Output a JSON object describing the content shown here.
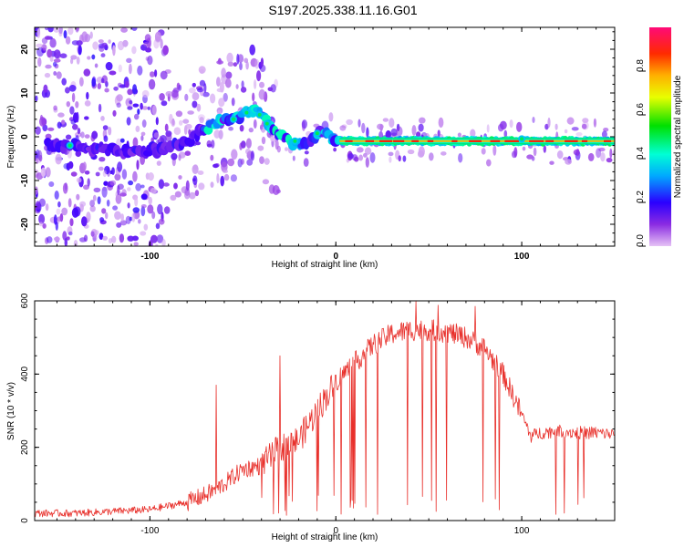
{
  "title": "S197.2025.338.11.16.G01",
  "chart_data": [
    {
      "type": "heatmap",
      "name": "spectrogram",
      "xlabel": "Height of straight line (km)",
      "ylabel": "Frequency (Hz)",
      "xlim": [
        -162,
        150
      ],
      "ylim": [
        -25,
        25
      ],
      "xticks": [
        -100,
        0,
        100
      ],
      "xtick_labels": [
        "-100",
        "0",
        "100"
      ],
      "yticks": [
        -20,
        -10,
        0,
        10,
        20
      ],
      "ytick_labels": [
        "-20",
        "-10",
        "0",
        "10",
        "20"
      ],
      "colorbar": {
        "label": "Normalized spectral amplitude",
        "range": [
          0,
          1
        ],
        "ticks": [
          0.0,
          0.2,
          0.4,
          0.6,
          0.8
        ],
        "tick_labels": [
          "0.0",
          "0.2",
          "0.4",
          "0.6",
          "0.8"
        ]
      },
      "ridge": {
        "x": [
          -150,
          -140,
          -130,
          -120,
          -110,
          -100,
          -90,
          -80,
          -70,
          -60,
          -50,
          -45,
          -40,
          -35,
          -30,
          -25,
          -20,
          -15,
          -10,
          -5,
          0,
          10,
          50,
          100,
          150
        ],
        "y": [
          -2,
          -2,
          -2.5,
          -3,
          -3.5,
          -3,
          -2.5,
          -1,
          2,
          4,
          5,
          6,
          5,
          2,
          0,
          -1,
          -1.5,
          -2,
          0.5,
          0.5,
          -1,
          -1,
          -1,
          -1,
          -1
        ]
      }
    },
    {
      "type": "line",
      "name": "snr",
      "xlabel": "Height of straight line (km)",
      "ylabel": "SNR (10 * v/v)",
      "xlim": [
        -162,
        150
      ],
      "ylim": [
        0,
        600
      ],
      "xticks": [
        -100,
        0,
        100
      ],
      "xtick_labels": [
        "-100",
        "0",
        "100"
      ],
      "yticks": [
        0,
        200,
        400,
        600
      ],
      "ytick_labels": [
        "0",
        "200",
        "400",
        "600"
      ],
      "color": "#e8302b",
      "envelope": {
        "x": [
          -162,
          -140,
          -120,
          -100,
          -90,
          -80,
          -70,
          -60,
          -50,
          -40,
          -30,
          -20,
          -10,
          0,
          10,
          20,
          30,
          40,
          50,
          60,
          70,
          80,
          90,
          100,
          105,
          110,
          120,
          130,
          140,
          150
        ],
        "y": [
          20,
          20,
          25,
          30,
          40,
          50,
          70,
          100,
          140,
          150,
          200,
          220,
          300,
          380,
          430,
          480,
          510,
          520,
          520,
          515,
          500,
          470,
          400,
          290,
          230,
          240,
          245,
          240,
          240,
          235
        ]
      },
      "spikes": [
        {
          "x": -64.5,
          "y": 370
        },
        {
          "x": -30,
          "y": 450
        },
        {
          "x": 43,
          "y": 598
        },
        {
          "x": 55,
          "y": 588
        },
        {
          "x": 75,
          "y": 585
        }
      ]
    }
  ]
}
